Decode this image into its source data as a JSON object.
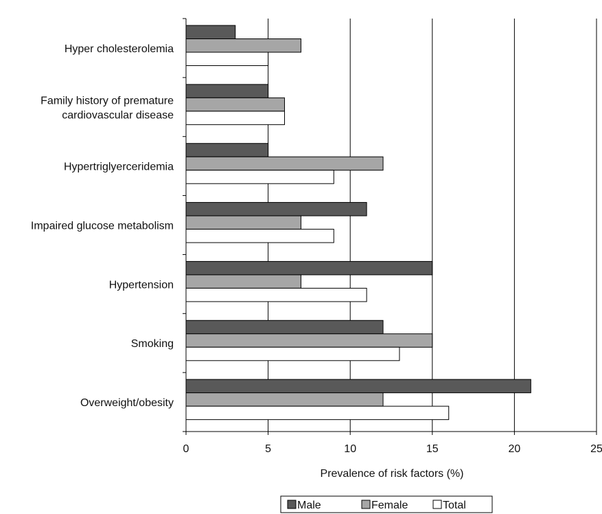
{
  "chart_data": {
    "type": "bar",
    "orientation": "horizontal",
    "categories": [
      [
        "Hyper cholesterolemia"
      ],
      [
        "Family history of premature",
        "cardiovascular disease"
      ],
      [
        "Hypertriglyerceridemia"
      ],
      [
        "Impaired glucose metabolism"
      ],
      [
        "Hypertension"
      ],
      [
        "Smoking"
      ],
      [
        "Overweight/obesity"
      ]
    ],
    "series": [
      {
        "name": "Male",
        "color": "#595959",
        "values": [
          3,
          5,
          5,
          11,
          15,
          12,
          21
        ]
      },
      {
        "name": "Female",
        "color": "#a6a6a6",
        "values": [
          7,
          6,
          12,
          7,
          7,
          15,
          12
        ]
      },
      {
        "name": "Total",
        "color": "#ffffff",
        "values": [
          5,
          6,
          9,
          9,
          11,
          13,
          16
        ]
      }
    ],
    "xlabel": "Prevalence of risk factors (%)",
    "xlim": [
      0,
      25
    ],
    "xticks": [
      0,
      5,
      10,
      15,
      20,
      25
    ],
    "grid": "vertical",
    "legend_position": "bottom"
  }
}
